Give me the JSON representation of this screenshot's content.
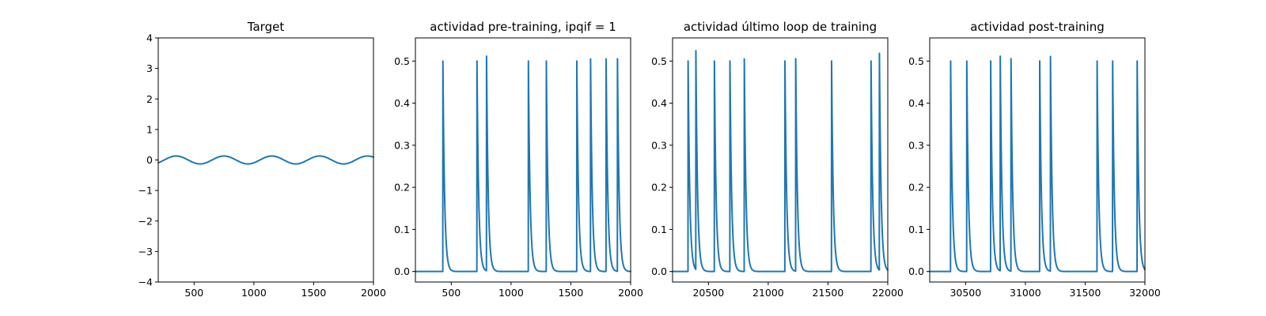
{
  "chart_data": [
    {
      "type": "line",
      "title": "Target",
      "xlabel": "",
      "ylabel": "",
      "xlim": [
        200,
        2000
      ],
      "ylim": [
        -4,
        4
      ],
      "xticks": [
        500,
        1000,
        1500,
        2000
      ],
      "yticks": [
        -4,
        -3,
        -2,
        -1,
        0,
        1,
        2,
        3,
        4
      ],
      "grid": false,
      "color": "#1f77b4",
      "signal": {
        "kind": "sine",
        "amplitude": 0.13,
        "period": 400,
        "peaks_at": [
          350,
          750,
          1150,
          1550,
          1950
        ]
      }
    },
    {
      "type": "line",
      "title": "actividad pre-training, ipqif = 1",
      "xlabel": "",
      "ylabel": "",
      "xlim": [
        200,
        2000
      ],
      "ylim": [
        -0.025,
        0.555
      ],
      "xticks": [
        500,
        1000,
        1500,
        2000
      ],
      "yticks": [
        0.0,
        0.1,
        0.2,
        0.3,
        0.4,
        0.5
      ],
      "grid": false,
      "color": "#1f77b4",
      "spikes": [
        {
          "x": 430,
          "y": 0.5
        },
        {
          "x": 715,
          "y": 0.5
        },
        {
          "x": 795,
          "y": 0.51
        },
        {
          "x": 1145,
          "y": 0.5
        },
        {
          "x": 1295,
          "y": 0.5
        },
        {
          "x": 1550,
          "y": 0.5
        },
        {
          "x": 1665,
          "y": 0.505
        },
        {
          "x": 1795,
          "y": 0.505
        },
        {
          "x": 1890,
          "y": 0.505
        }
      ]
    },
    {
      "type": "line",
      "title": "actividad último loop de training",
      "xlabel": "",
      "ylabel": "",
      "xlim": [
        20200,
        22000
      ],
      "ylim": [
        -0.025,
        0.555
      ],
      "xticks": [
        20500,
        21000,
        21500,
        22000
      ],
      "yticks": [
        0.0,
        0.1,
        0.2,
        0.3,
        0.4,
        0.5
      ],
      "grid": false,
      "color": "#1f77b4",
      "spikes": [
        {
          "x": 20330,
          "y": 0.5
        },
        {
          "x": 20395,
          "y": 0.52
        },
        {
          "x": 20550,
          "y": 0.5
        },
        {
          "x": 20680,
          "y": 0.5
        },
        {
          "x": 20800,
          "y": 0.505
        },
        {
          "x": 21140,
          "y": 0.5
        },
        {
          "x": 21230,
          "y": 0.505
        },
        {
          "x": 21530,
          "y": 0.5
        },
        {
          "x": 21860,
          "y": 0.5
        },
        {
          "x": 21930,
          "y": 0.515
        }
      ]
    },
    {
      "type": "line",
      "title": "actividad post-training",
      "xlabel": "",
      "ylabel": "",
      "xlim": [
        30200,
        32000
      ],
      "ylim": [
        -0.025,
        0.555
      ],
      "xticks": [
        30500,
        31000,
        31500,
        32000
      ],
      "yticks": [
        0.0,
        0.1,
        0.2,
        0.3,
        0.4,
        0.5
      ],
      "grid": false,
      "color": "#1f77b4",
      "spikes": [
        {
          "x": 30375,
          "y": 0.5
        },
        {
          "x": 30510,
          "y": 0.5
        },
        {
          "x": 30710,
          "y": 0.5
        },
        {
          "x": 30790,
          "y": 0.51
        },
        {
          "x": 30880,
          "y": 0.505
        },
        {
          "x": 31120,
          "y": 0.5
        },
        {
          "x": 31210,
          "y": 0.51
        },
        {
          "x": 31600,
          "y": 0.5
        },
        {
          "x": 31730,
          "y": 0.5
        },
        {
          "x": 31935,
          "y": 0.5
        }
      ]
    }
  ]
}
